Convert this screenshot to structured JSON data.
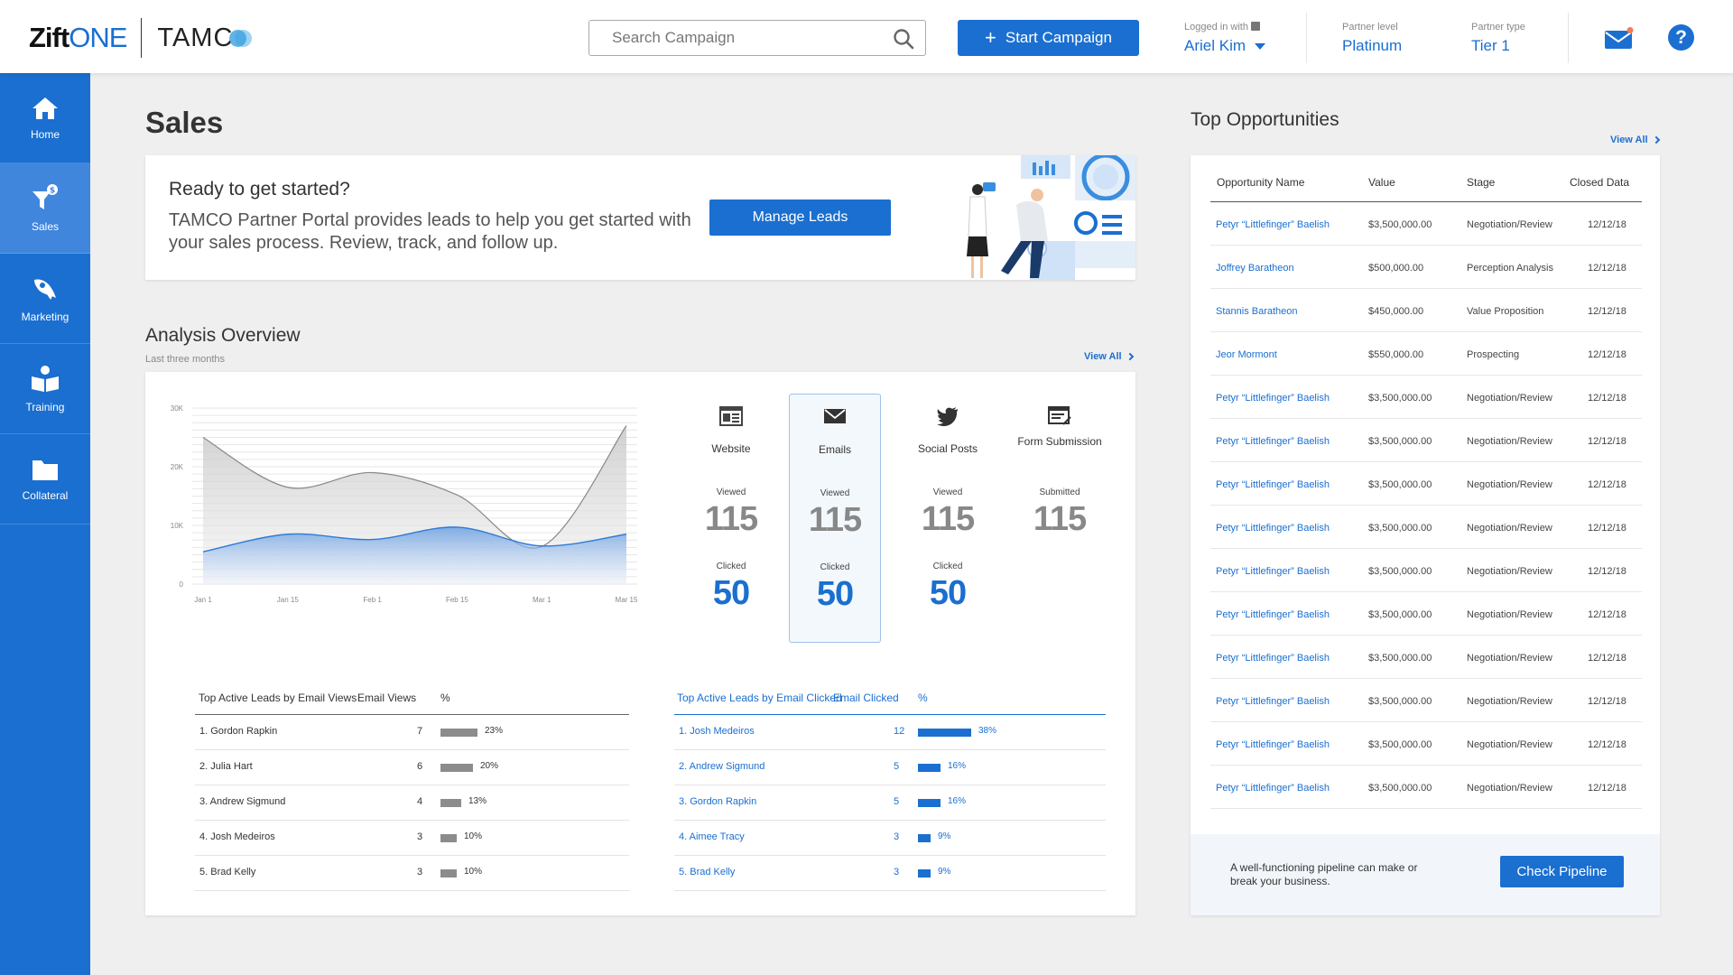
{
  "header": {
    "logo_zift": "Zift",
    "logo_one": "ONE",
    "logo_tamco": "TAMC",
    "search_placeholder": "Search Campaign",
    "start_campaign": "Start Campaign",
    "logged_in_label": "Logged in with",
    "user_name": "Ariel Kim",
    "partner_level_label": "Partner level",
    "partner_level": "Platinum",
    "partner_type_label": "Partner type",
    "partner_type": "Tier 1"
  },
  "sidebar": {
    "items": [
      {
        "label": "Home",
        "icon": "home-icon"
      },
      {
        "label": "Sales",
        "icon": "funnel-icon"
      },
      {
        "label": "Marketing",
        "icon": "rocket-icon"
      },
      {
        "label": "Training",
        "icon": "book-icon"
      },
      {
        "label": "Collateral",
        "icon": "folder-icon"
      }
    ],
    "active": "Sales"
  },
  "page": {
    "title": "Sales"
  },
  "banner": {
    "title": "Ready to get started?",
    "text": "TAMCO Partner Portal provides leads to help you get started with your sales process. Review, track, and follow up.",
    "button": "Manage Leads"
  },
  "analysis": {
    "title": "Analysis Overview",
    "subtitle": "Last three months",
    "view_all": "View All",
    "metrics": [
      {
        "name": "Website",
        "label1": "Viewed",
        "value1": "115",
        "label2": "Clicked",
        "value2": "50",
        "icon": "browser-icon"
      },
      {
        "name": "Emails",
        "label1": "Viewed",
        "value1": "115",
        "label2": "Clicked",
        "value2": "50",
        "icon": "envelope-icon"
      },
      {
        "name": "Social Posts",
        "label1": "Viewed",
        "value1": "115",
        "label2": "Clicked",
        "value2": "50",
        "icon": "twitter-icon"
      },
      {
        "name": "Form Submission",
        "label1": "Submitted",
        "value1": "115",
        "label2": "",
        "value2": "",
        "icon": "form-icon"
      }
    ],
    "views_table": {
      "headers": [
        "Top Active Leads by Email Views",
        "Email Views",
        "%"
      ],
      "rows": [
        {
          "name": "1. Gordon Rapkin",
          "value": "7",
          "pct": "23%",
          "pct_num": 23
        },
        {
          "name": "2. Julia Hart",
          "value": "6",
          "pct": "20%",
          "pct_num": 20
        },
        {
          "name": "3. Andrew Sigmund",
          "value": "4",
          "pct": "13%",
          "pct_num": 13
        },
        {
          "name": "4. Josh Medeiros",
          "value": "3",
          "pct": "10%",
          "pct_num": 10
        },
        {
          "name": "5. Brad Kelly",
          "value": "3",
          "pct": "10%",
          "pct_num": 10
        }
      ]
    },
    "clicked_table": {
      "headers": [
        "Top Active Leads by Email Clicked",
        "Email Clicked",
        "%"
      ],
      "rows": [
        {
          "name": "1. Josh Medeiros",
          "value": "12",
          "pct": "38%",
          "pct_num": 38
        },
        {
          "name": "2. Andrew Sigmund",
          "value": "5",
          "pct": "16%",
          "pct_num": 16
        },
        {
          "name": "3. Gordon Rapkin",
          "value": "5",
          "pct": "16%",
          "pct_num": 16
        },
        {
          "name": "4. Aimee Tracy",
          "value": "3",
          "pct": "9%",
          "pct_num": 9
        },
        {
          "name": "5. Brad Kelly",
          "value": "3",
          "pct": "9%",
          "pct_num": 9
        }
      ]
    }
  },
  "chart_data": {
    "type": "area",
    "x_ticks": [
      "Jan 1",
      "Jan 15",
      "Feb 1",
      "Feb 15",
      "Mar 1",
      "Mar 15"
    ],
    "y_ticks": [
      "0",
      "10K",
      "20K",
      "30K"
    ],
    "ylim": [
      0,
      30000
    ],
    "series": [
      {
        "values": [
          25000,
          16500,
          19000,
          15200,
          6400,
          27000
        ],
        "color": "#b4b4b4"
      },
      {
        "values": [
          5500,
          8500,
          7600,
          9700,
          6500,
          8500
        ],
        "color": "#2f7ad6"
      }
    ],
    "grid": true
  },
  "opportunities": {
    "title": "Top Opportunities",
    "view_all": "View All",
    "headers": [
      "Opportunity Name",
      "Value",
      "Stage",
      "Closed Data"
    ],
    "rows": [
      {
        "name": "Petyr “Littlefinger” Baelish",
        "value": "$3,500,000.00",
        "stage": "Negotiation/Review",
        "date": "12/12/18"
      },
      {
        "name": "Joffrey Baratheon",
        "value": "$500,000.00",
        "stage": "Perception Analysis",
        "date": "12/12/18"
      },
      {
        "name": "Stannis Baratheon",
        "value": "$450,000.00",
        "stage": "Value Proposition",
        "date": "12/12/18"
      },
      {
        "name": "Jeor Mormont",
        "value": "$550,000.00",
        "stage": "Prospecting",
        "date": "12/12/18"
      },
      {
        "name": "Petyr “Littlefinger” Baelish",
        "value": "$3,500,000.00",
        "stage": "Negotiation/Review",
        "date": "12/12/18"
      },
      {
        "name": "Petyr “Littlefinger” Baelish",
        "value": "$3,500,000.00",
        "stage": "Negotiation/Review",
        "date": "12/12/18"
      },
      {
        "name": "Petyr “Littlefinger” Baelish",
        "value": "$3,500,000.00",
        "stage": "Negotiation/Review",
        "date": "12/12/18"
      },
      {
        "name": "Petyr “Littlefinger” Baelish",
        "value": "$3,500,000.00",
        "stage": "Negotiation/Review",
        "date": "12/12/18"
      },
      {
        "name": "Petyr “Littlefinger” Baelish",
        "value": "$3,500,000.00",
        "stage": "Negotiation/Review",
        "date": "12/12/18"
      },
      {
        "name": "Petyr “Littlefinger” Baelish",
        "value": "$3,500,000.00",
        "stage": "Negotiation/Review",
        "date": "12/12/18"
      },
      {
        "name": "Petyr “Littlefinger” Baelish",
        "value": "$3,500,000.00",
        "stage": "Negotiation/Review",
        "date": "12/12/18"
      },
      {
        "name": "Petyr “Littlefinger” Baelish",
        "value": "$3,500,000.00",
        "stage": "Negotiation/Review",
        "date": "12/12/18"
      },
      {
        "name": "Petyr “Littlefinger” Baelish",
        "value": "$3,500,000.00",
        "stage": "Negotiation/Review",
        "date": "12/12/18"
      },
      {
        "name": "Petyr “Littlefinger” Baelish",
        "value": "$3,500,000.00",
        "stage": "Negotiation/Review",
        "date": "12/12/18"
      }
    ],
    "footer_text": "A well-functioning pipeline can make or break your business.",
    "footer_button": "Check Pipeline"
  },
  "colors": {
    "accent": "#1a6fd0",
    "sidebar_active": "#3f86dc",
    "notification": "#f47b52"
  }
}
